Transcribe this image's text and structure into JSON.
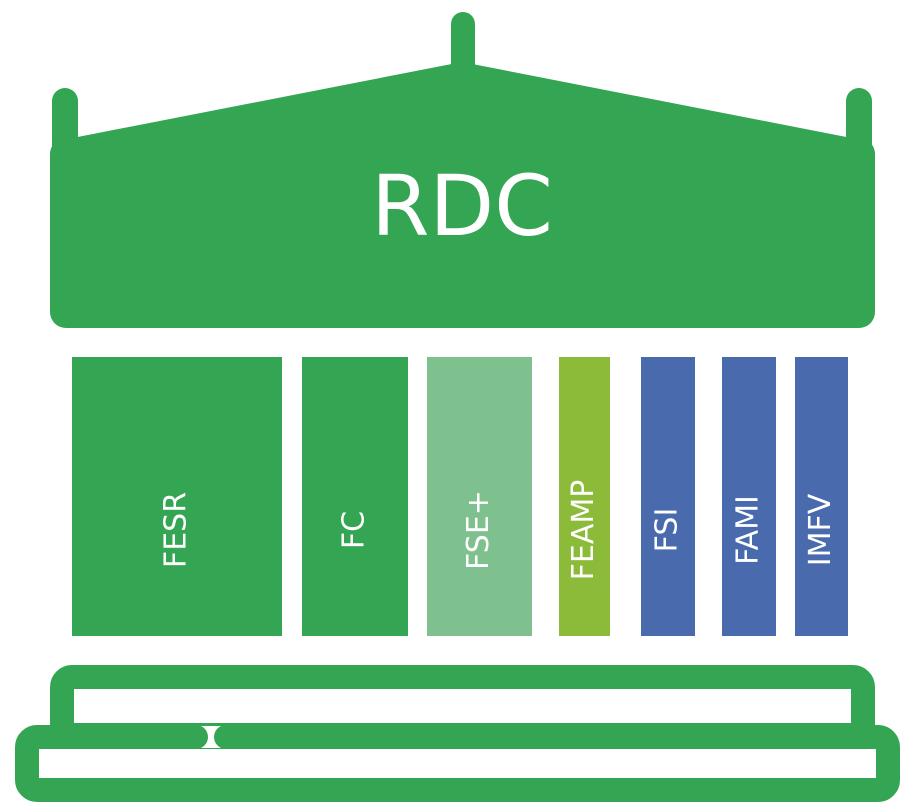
{
  "title": "RDC",
  "pillars": [
    {
      "label": "FESR",
      "color": "#34a552"
    },
    {
      "label": "FC",
      "color": "#34a552"
    },
    {
      "label": "FSE+",
      "color": "#7fc18e"
    },
    {
      "label": "FEAMP",
      "color": "#8cbb3a"
    },
    {
      "label": "FSI",
      "color": "#4a6aae"
    },
    {
      "label": "FAMI",
      "color": "#4a6aae"
    },
    {
      "label": "IMFV",
      "color": "#4a6aae"
    }
  ]
}
